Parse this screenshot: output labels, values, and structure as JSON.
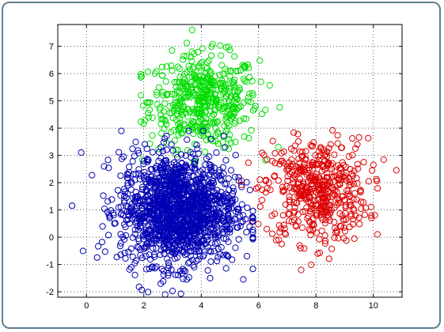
{
  "chart_data": {
    "type": "scatter",
    "title": "",
    "xlabel": "",
    "ylabel": "",
    "xlim": [
      -1,
      11
    ],
    "ylim": [
      -2.2,
      7.8
    ],
    "xticks": [
      "0",
      "2",
      "4",
      "6",
      "8",
      "10"
    ],
    "yticks": [
      "-2",
      "-1",
      "0",
      "1",
      "2",
      "3",
      "4",
      "5",
      "6",
      "7"
    ],
    "grid": true,
    "legend": "none",
    "marker": "open-circle",
    "series": [
      {
        "color": "#0000b4",
        "count": 1500,
        "center": [
          3.2,
          1.0
        ],
        "spread": [
          1.0,
          1.0
        ],
        "x_range": [
          -0.5,
          5.8
        ],
        "y_range": [
          -2.1,
          3.9
        ]
      },
      {
        "color": "#00dd00",
        "count": 500,
        "center": [
          4.1,
          5.0
        ],
        "spread": [
          0.95,
          0.85
        ],
        "x_range": [
          1.9,
          6.8
        ],
        "y_range": [
          2.4,
          7.6
        ]
      },
      {
        "color": "#dd0000",
        "count": 500,
        "center": [
          8.0,
          1.7
        ],
        "spread": [
          0.9,
          0.95
        ],
        "x_range": [
          5.4,
          10.8
        ],
        "y_range": [
          -1.2,
          4.9
        ]
      }
    ]
  }
}
